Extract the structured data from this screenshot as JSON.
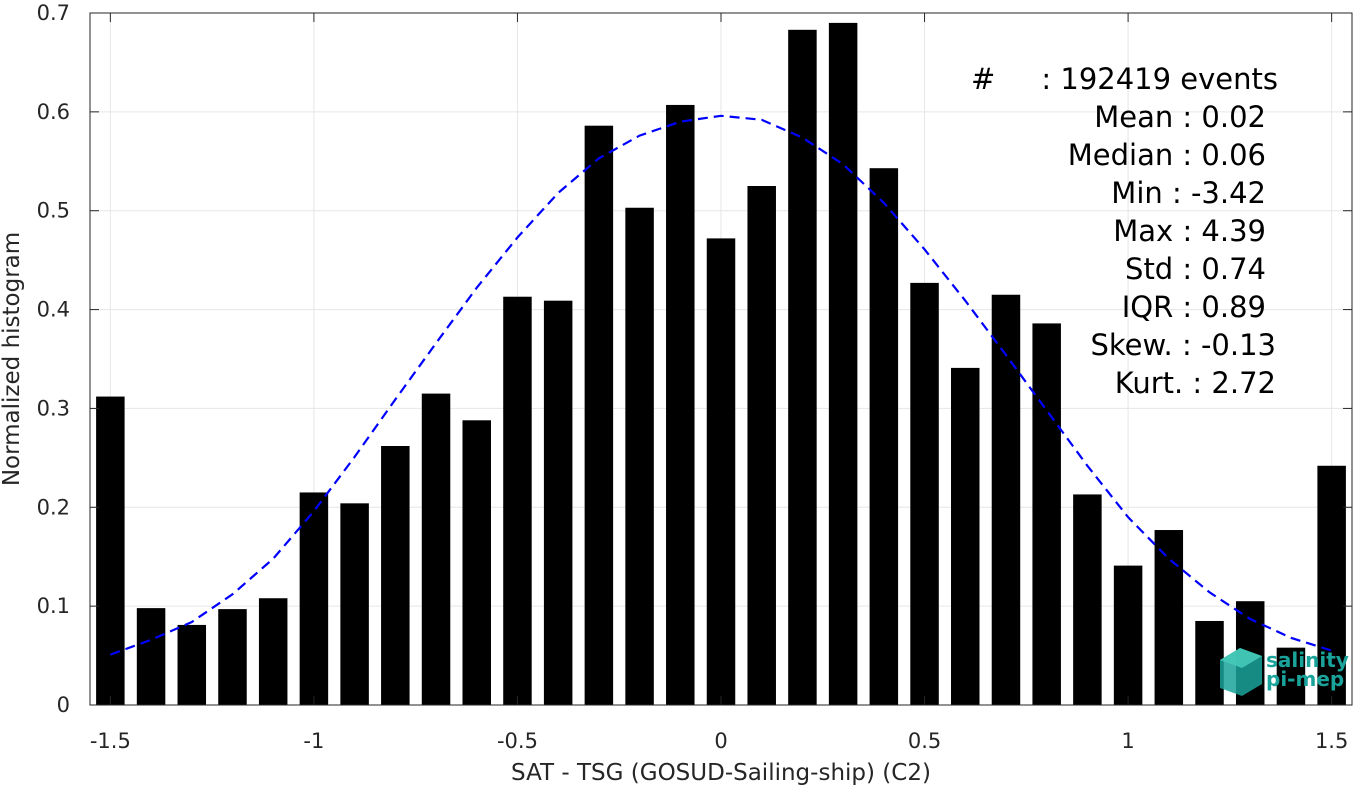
{
  "chart_data": {
    "type": "bar",
    "xlabel": "SAT - TSG (GOSUD-Sailing-ship) (C2)",
    "ylabel": "Normalized histogram",
    "xlim": [
      -1.55,
      1.55
    ],
    "ylim": [
      0,
      0.7
    ],
    "x_ticks": [
      -1.5,
      -1,
      -0.5,
      0,
      0.5,
      1,
      1.5
    ],
    "x_tick_labels": [
      "-1.5",
      "-1",
      "-0.5",
      "0",
      "0.5",
      "1",
      "1.5"
    ],
    "y_ticks": [
      0,
      0.1,
      0.2,
      0.3,
      0.4,
      0.5,
      0.6,
      0.7
    ],
    "y_tick_labels": [
      "0",
      "0.1",
      "0.2",
      "0.3",
      "0.4",
      "0.5",
      "0.6",
      "0.7"
    ],
    "grid": true,
    "bar_color": "#000000",
    "fit_color": "#0000ff",
    "bars": {
      "x": [
        -1.5,
        -1.4,
        -1.3,
        -1.2,
        -1.1,
        -1.0,
        -0.9,
        -0.8,
        -0.7,
        -0.6,
        -0.5,
        -0.4,
        -0.3,
        -0.2,
        -0.1,
        0.0,
        0.1,
        0.2,
        0.3,
        0.4,
        0.5,
        0.6,
        0.7,
        0.8,
        0.9,
        1.0,
        1.1,
        1.2,
        1.3,
        1.4,
        1.5
      ],
      "values": [
        0.312,
        0.098,
        0.081,
        0.097,
        0.108,
        0.215,
        0.204,
        0.262,
        0.315,
        0.288,
        0.413,
        0.409,
        0.586,
        0.503,
        0.607,
        0.472,
        0.525,
        0.683,
        0.69,
        0.543,
        0.427,
        0.341,
        0.415,
        0.386,
        0.213,
        0.141,
        0.177,
        0.085,
        0.105,
        0.058,
        0.242
      ]
    },
    "fit_curve": {
      "name": "gaussian fit",
      "style": "dashed",
      "x": [
        -1.5,
        -1.4,
        -1.3,
        -1.2,
        -1.1,
        -1.0,
        -0.9,
        -0.8,
        -0.7,
        -0.6,
        -0.5,
        -0.4,
        -0.3,
        -0.2,
        -0.1,
        0.0,
        0.1,
        0.2,
        0.3,
        0.4,
        0.5,
        0.6,
        0.7,
        0.8,
        0.9,
        1.0,
        1.1,
        1.2,
        1.3,
        1.4,
        1.5
      ],
      "y": [
        0.051,
        0.066,
        0.084,
        0.112,
        0.148,
        0.196,
        0.251,
        0.309,
        0.366,
        0.422,
        0.473,
        0.518,
        0.553,
        0.576,
        0.59,
        0.596,
        0.592,
        0.574,
        0.547,
        0.508,
        0.461,
        0.409,
        0.354,
        0.298,
        0.242,
        0.19,
        0.148,
        0.114,
        0.087,
        0.068,
        0.055
      ]
    }
  },
  "stats": [
    {
      "label": "#",
      "sep": ":",
      "value": "192419 events"
    },
    {
      "label": "Mean",
      "sep": ":",
      "value": "0.02"
    },
    {
      "label": "Median",
      "sep": ":",
      "value": "0.06"
    },
    {
      "label": "Min",
      "sep": ":",
      "value": "-3.42"
    },
    {
      "label": "Max",
      "sep": ":",
      "value": "4.39"
    },
    {
      "label": "Std",
      "sep": ":",
      "value": "0.74"
    },
    {
      "label": "IQR",
      "sep": ":",
      "value": "0.89"
    },
    {
      "label": "Skew.",
      "sep": ":",
      "value": "-0.13"
    },
    {
      "label": "Kurt.",
      "sep": ":",
      "value": "2.72"
    }
  ],
  "logo": {
    "line1": "salinity",
    "line2": "pi-mep",
    "color": "#1aa39a"
  }
}
